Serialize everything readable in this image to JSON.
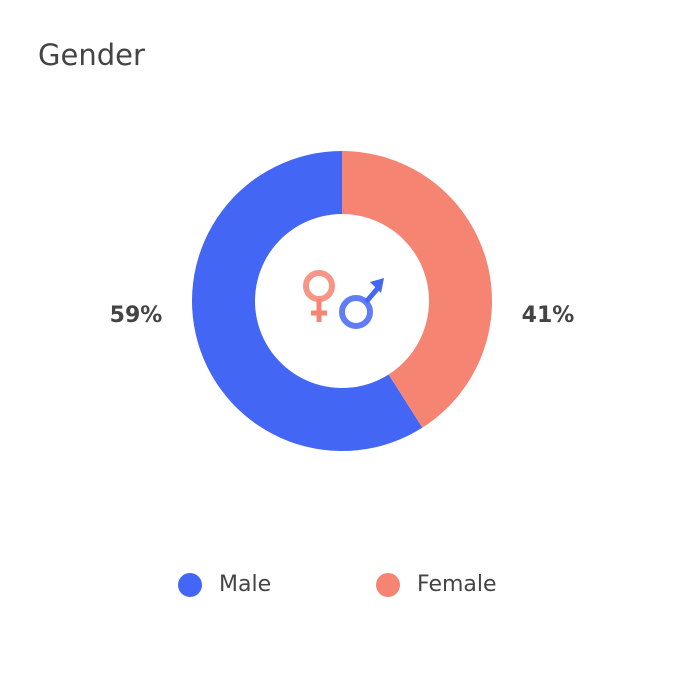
{
  "chart_data": {
    "type": "donut",
    "title": "Gender",
    "categories": [
      "Male",
      "Female"
    ],
    "values": [
      59,
      41
    ],
    "value_labels": [
      "59%",
      "41%"
    ],
    "colors": [
      "#4466f5",
      "#f68472"
    ]
  }
}
